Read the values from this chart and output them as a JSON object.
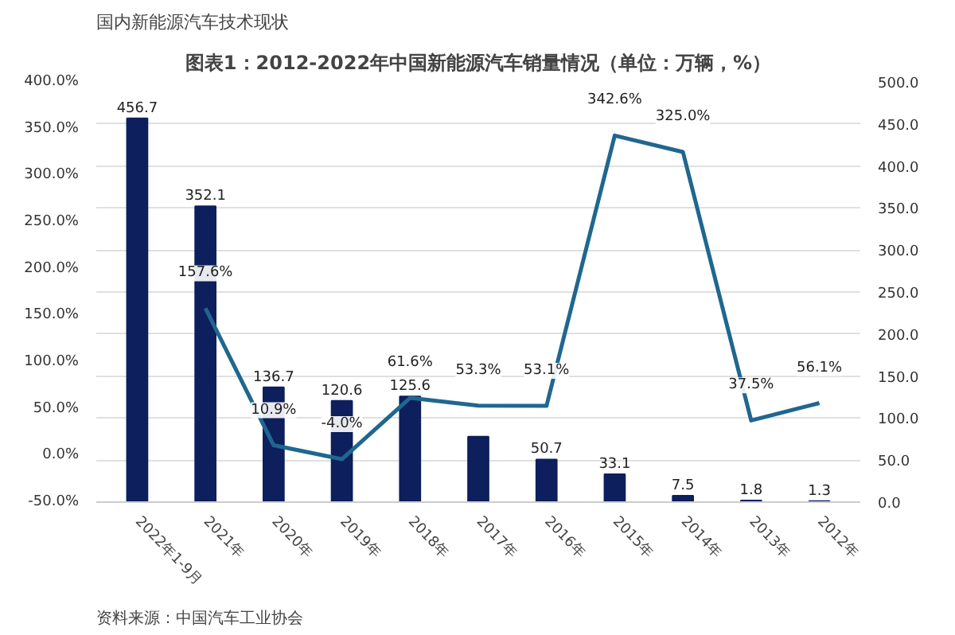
{
  "chart_data": {
    "type": "bar",
    "title": "图表1：2012-2022年中国新能源汽车销量情况（单位：万辆，%）",
    "categories": [
      "2022年1-9月",
      "2021年",
      "2020年",
      "2019年",
      "2018年",
      "2017年",
      "2016年",
      "2015年",
      "2014年",
      "2013年",
      "2012年"
    ],
    "series": [
      {
        "axis": "y2",
        "color": "#0d1f5c",
        "values": [
          456.7,
          352.1,
          136.7,
          120.6,
          125.6,
          78,
          50.7,
          33.1,
          7.5,
          1.8,
          1.3
        ],
        "value_labels": [
          "456.7",
          "352.1",
          "136.7",
          "120.6",
          "125.6",
          null,
          "50.7",
          "33.1",
          "7.5",
          "1.8",
          "1.3"
        ]
      },
      {
        "type": "line",
        "color": "#1f6790",
        "values": [
          null,
          157.6,
          10.9,
          -4.0,
          61.6,
          53.3,
          53.1,
          342.6,
          325.0,
          37.5,
          56.1
        ],
        "value_labels": [
          null,
          "157.6%",
          "10.9%",
          "-4.0%",
          "61.6%",
          "53.3%",
          "53.1%",
          "342.6%",
          "325.0%",
          "37.5%",
          "56.1%"
        ]
      }
    ],
    "ylim": [
      -50,
      400
    ],
    "yticks": [
      {
        "value": -50,
        "label": "-50.0%"
      },
      {
        "value": 0,
        "label": "0.0%"
      },
      {
        "value": 50,
        "label": "50.0%"
      },
      {
        "value": 100,
        "label": "100.0%"
      },
      {
        "value": 150,
        "label": "150.0%"
      },
      {
        "value": 200,
        "label": "200.0%"
      },
      {
        "value": 250,
        "label": "250.0%"
      },
      {
        "value": 300,
        "label": "300.0%"
      },
      {
        "value": 350,
        "label": "350.0%"
      },
      {
        "value": 400,
        "label": "400.0%"
      }
    ],
    "y2lim": [
      0,
      500
    ],
    "y2ticks": [
      {
        "value": 0,
        "label": "0.0"
      },
      {
        "value": 50,
        "label": "50.0"
      },
      {
        "value": 100,
        "label": "100.0"
      },
      {
        "value": 150,
        "label": "150.0"
      },
      {
        "value": 200,
        "label": "200.0"
      },
      {
        "value": 250,
        "label": "250.0"
      },
      {
        "value": 300,
        "label": "300.0"
      },
      {
        "value": 350,
        "label": "350.0"
      },
      {
        "value": 400,
        "label": "400.0"
      },
      {
        "value": 450,
        "label": "450.0"
      },
      {
        "value": 500,
        "label": "500.0"
      }
    ],
    "grid": "y2",
    "marker": "none",
    "annotations": [
      "国内新能源汽车技术现状",
      "资料来源：中国汽车工业协会"
    ]
  }
}
